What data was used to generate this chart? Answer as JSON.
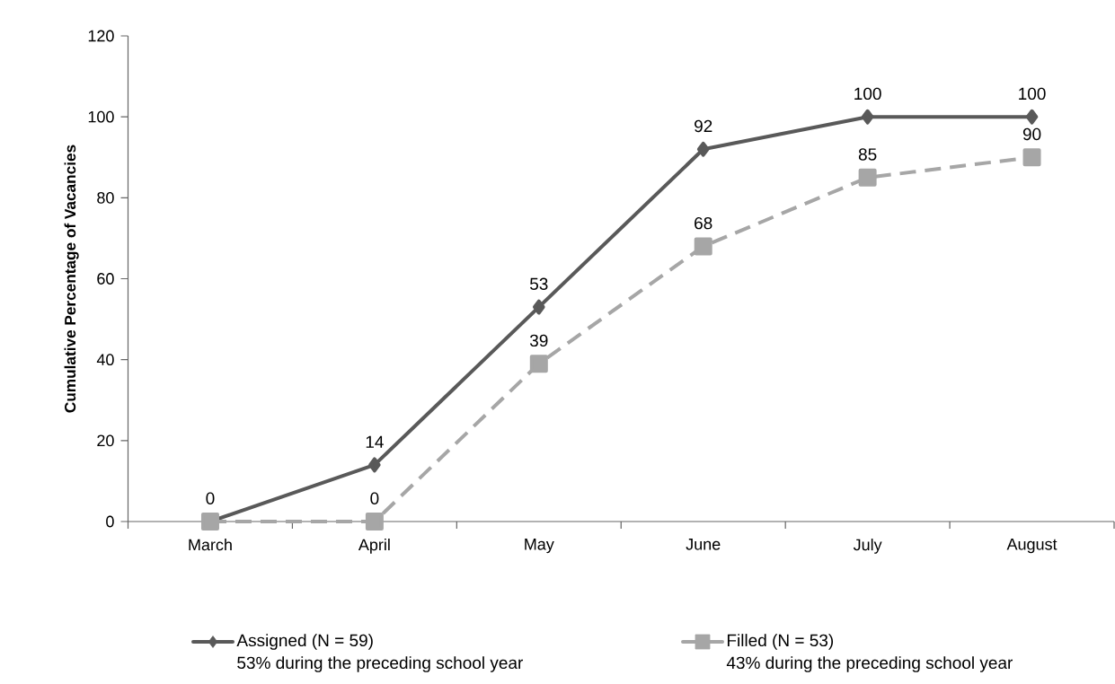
{
  "chart_data": {
    "type": "line",
    "ylabel": "Cumulative Percentage of Vacancies",
    "categories": [
      "March",
      "April",
      "May",
      "June",
      "July",
      "August"
    ],
    "series": [
      {
        "name": "Assigned (N = 59)",
        "color": "#595959",
        "marker": "diamond",
        "line_style": "solid",
        "values": [
          0,
          14,
          53,
          92,
          100,
          100
        ],
        "value_labels": [
          "0",
          "14",
          "53",
          "92",
          "100",
          "100"
        ]
      },
      {
        "name": "Filled (N = 53)",
        "color": "#a6a6a6",
        "marker": "square",
        "line_style": "dashed",
        "values": [
          0,
          0,
          39,
          68,
          85,
          90
        ],
        "value_labels": [
          null,
          "0",
          "39",
          "68",
          "85",
          "90"
        ]
      }
    ],
    "annotations": [
      "53% during the preceding school year",
      "43% during the preceding school year"
    ],
    "ylim": [
      0,
      120
    ],
    "yticks": [
      0,
      20,
      40,
      60,
      80,
      100,
      120
    ],
    "grid": false,
    "legend": "bottom"
  }
}
